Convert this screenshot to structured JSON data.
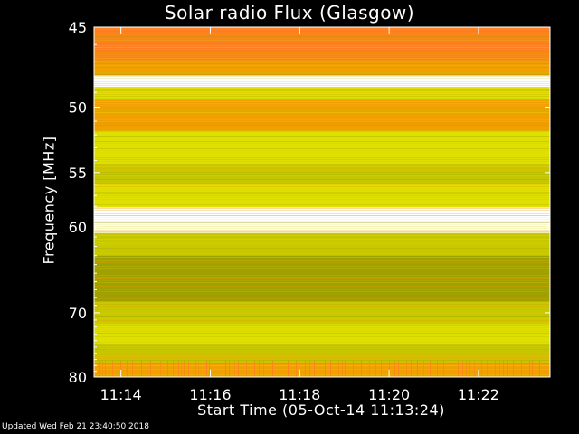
{
  "chart_data": {
    "type": "heatmap",
    "title": "Solar radio Flux (Glasgow)",
    "xlabel": "Start Time (05-Oct-14 11:13:24)",
    "ylabel": "Frequency [MHz]",
    "y_ticks": [
      45,
      50,
      55,
      60,
      70,
      80
    ],
    "y_tick_labels": [
      "45",
      "50",
      "55",
      "60",
      "70",
      "80"
    ],
    "ylim": [
      45,
      80
    ],
    "y_scale": "reciprocal",
    "x_ticks": [
      "11:14",
      "11:16",
      "11:18",
      "11:20",
      "11:22"
    ],
    "xlim": [
      "11:13:24",
      "11:23:36"
    ],
    "colors": {
      "very_high": "#ffffff",
      "high": "#ff8020",
      "mid_high": "#f0a000",
      "mid": "#e0e000",
      "mid_low": "#c8c800",
      "low": "#a0a000"
    },
    "frequency_bands": [
      {
        "mhz": 45.5,
        "level": "high"
      },
      {
        "mhz": 46.5,
        "level": "high"
      },
      {
        "mhz": 47.5,
        "level": "mid_high"
      },
      {
        "mhz": 48.3,
        "level": "very_high"
      },
      {
        "mhz": 49.0,
        "level": "mid"
      },
      {
        "mhz": 50.0,
        "level": "mid_high"
      },
      {
        "mhz": 51.0,
        "level": "mid_high"
      },
      {
        "mhz": 52.5,
        "level": "mid"
      },
      {
        "mhz": 53.5,
        "level": "mid"
      },
      {
        "mhz": 55.0,
        "level": "mid_low"
      },
      {
        "mhz": 57.0,
        "level": "mid"
      },
      {
        "mhz": 59.2,
        "level": "very_high"
      },
      {
        "mhz": 62.0,
        "level": "mid_low"
      },
      {
        "mhz": 64.0,
        "level": "low"
      },
      {
        "mhz": 67.0,
        "level": "low"
      },
      {
        "mhz": 70.0,
        "level": "mid_low"
      },
      {
        "mhz": 73.0,
        "level": "mid"
      },
      {
        "mhz": 76.0,
        "level": "mid_low"
      },
      {
        "mhz": 79.0,
        "level": "mid_high"
      }
    ]
  },
  "footer": {
    "updated": "Updated Wed Feb 21 23:40:50 2018"
  }
}
